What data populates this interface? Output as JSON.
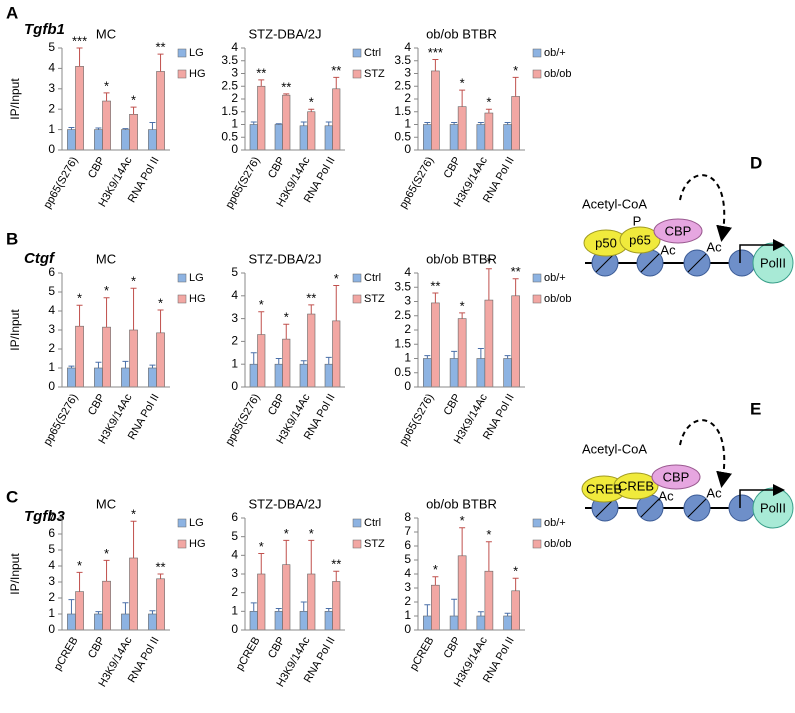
{
  "panels": [
    {
      "letter": "A",
      "gene": "Tgfb1"
    },
    {
      "letter": "B",
      "gene": "Ctgf"
    },
    {
      "letter": "C",
      "gene": "Tgfb3"
    }
  ],
  "chart_data": [
    {
      "type": "bar",
      "title": "MC",
      "ylabel": "IP/Input",
      "categories": [
        "pp65(S276)",
        "CBP",
        "H3K9/14Ac",
        "RNA Pol II"
      ],
      "series": [
        {
          "name": "LG",
          "color": "#8db3e2",
          "values": [
            1,
            1,
            1,
            1
          ],
          "errors": [
            0.1,
            0.08,
            0.05,
            0.35
          ]
        },
        {
          "name": "HG",
          "color": "#f2a7a3",
          "values": [
            4.1,
            2.4,
            1.75,
            3.85
          ],
          "errors": [
            0.9,
            0.4,
            0.35,
            0.85
          ]
        }
      ],
      "significance": [
        "***",
        "*",
        "*",
        "**"
      ],
      "ylim": [
        0,
        5
      ],
      "yticks": [
        0,
        1,
        2,
        3,
        4,
        5
      ]
    },
    {
      "type": "bar",
      "title": "STZ-DBA/2J",
      "categories": [
        "pp65(S276)",
        "CBP",
        "H3K9/14Ac",
        "RNA Pol II"
      ],
      "series": [
        {
          "name": "Ctrl",
          "color": "#8db3e2",
          "values": [
            1,
            1,
            0.95,
            0.95
          ],
          "errors": [
            0.1,
            0.03,
            0.15,
            0.15
          ]
        },
        {
          "name": "STZ",
          "color": "#f2a7a3",
          "values": [
            2.5,
            2.15,
            1.5,
            2.4
          ],
          "errors": [
            0.25,
            0.05,
            0.1,
            0.45
          ]
        }
      ],
      "significance": [
        "**",
        "**",
        "*",
        "**"
      ],
      "ylim": [
        0,
        4
      ],
      "yticks": [
        0,
        0.5,
        1,
        1.5,
        2,
        2.5,
        3,
        3.5,
        4
      ]
    },
    {
      "type": "bar",
      "title": "ob/ob BTBR",
      "categories": [
        "pp65(S276)",
        "CBP",
        "H3K9/14Ac",
        "RNA Pol II"
      ],
      "series": [
        {
          "name": "ob/+",
          "color": "#8db3e2",
          "values": [
            1,
            1,
            1,
            1
          ],
          "errors": [
            0.08,
            0.08,
            0.08,
            0.08
          ]
        },
        {
          "name": "ob/ob",
          "color": "#f2a7a3",
          "values": [
            3.1,
            1.7,
            1.45,
            2.1
          ],
          "errors": [
            0.45,
            0.65,
            0.15,
            0.75
          ]
        }
      ],
      "significance": [
        "***",
        "*",
        "*",
        "*"
      ],
      "ylim": [
        0,
        4
      ],
      "yticks": [
        0,
        0.5,
        1,
        1.5,
        2,
        2.5,
        3,
        3.5,
        4
      ]
    },
    {
      "type": "bar",
      "title": "MC",
      "ylabel": "IP/Input",
      "categories": [
        "pp65(S276)",
        "CBP",
        "H3K9/14Ac",
        "RNA Pol II"
      ],
      "series": [
        {
          "name": "LG",
          "color": "#8db3e2",
          "values": [
            1,
            1,
            1,
            1
          ],
          "errors": [
            0.1,
            0.3,
            0.35,
            0.15
          ]
        },
        {
          "name": "HG",
          "color": "#f2a7a3",
          "values": [
            3.2,
            3.15,
            3,
            2.85
          ],
          "errors": [
            1.1,
            1.55,
            2.2,
            1.2
          ]
        }
      ],
      "significance": [
        "*",
        "*",
        "*",
        "*"
      ],
      "ylim": [
        0,
        6
      ],
      "yticks": [
        0,
        1,
        2,
        3,
        4,
        5,
        6
      ]
    },
    {
      "type": "bar",
      "title": "STZ-DBA/2J",
      "categories": [
        "pp65(S276)",
        "CBP",
        "H3K9/14Ac",
        "RNA Pol II"
      ],
      "series": [
        {
          "name": "Ctrl",
          "color": "#8db3e2",
          "values": [
            1,
            1,
            1,
            1
          ],
          "errors": [
            0.5,
            0.25,
            0.15,
            0.3
          ]
        },
        {
          "name": "STZ",
          "color": "#f2a7a3",
          "values": [
            2.3,
            2.1,
            3.2,
            2.9
          ],
          "errors": [
            1.0,
            0.65,
            0.4,
            1.55
          ]
        }
      ],
      "significance": [
        "*",
        "*",
        "**",
        "*"
      ],
      "ylim": [
        0,
        5
      ],
      "yticks": [
        0,
        1,
        2,
        3,
        4,
        5
      ]
    },
    {
      "type": "bar",
      "title": "ob/ob BTBR",
      "categories": [
        "pp65(S276)",
        "CBP",
        "H3K9/14Ac",
        "RNA Pol II"
      ],
      "series": [
        {
          "name": "ob/+",
          "color": "#8db3e2",
          "values": [
            1,
            1,
            1,
            1
          ],
          "errors": [
            0.1,
            0.25,
            0.35,
            0.1
          ]
        },
        {
          "name": "ob/ob",
          "color": "#f2a7a3",
          "values": [
            2.95,
            2.4,
            3.05,
            3.2
          ],
          "errors": [
            0.35,
            0.2,
            1.1,
            0.6
          ]
        }
      ],
      "significance": [
        "**",
        "*",
        "*",
        "**"
      ],
      "ylim": [
        0,
        4
      ],
      "yticks": [
        0,
        0.5,
        1,
        1.5,
        2,
        2.5,
        3,
        3.5,
        4
      ]
    },
    {
      "type": "bar",
      "title": "MC",
      "ylabel": "IP/Input",
      "categories": [
        "pCREB",
        "CBP",
        "H3K9/14Ac",
        "RNA Pol II"
      ],
      "series": [
        {
          "name": "LG",
          "color": "#8db3e2",
          "values": [
            1,
            1,
            1,
            1
          ],
          "errors": [
            0.9,
            0.15,
            0.7,
            0.2
          ]
        },
        {
          "name": "HG",
          "color": "#f2a7a3",
          "values": [
            2.4,
            3.05,
            4.5,
            3.2
          ],
          "errors": [
            1.2,
            1.3,
            2.3,
            0.3
          ]
        }
      ],
      "significance": [
        "*",
        "*",
        "*",
        "**"
      ],
      "ylim": [
        0,
        7
      ],
      "yticks": [
        0,
        1,
        2,
        3,
        4,
        5,
        6,
        7
      ]
    },
    {
      "type": "bar",
      "title": "STZ-DBA/2J",
      "categories": [
        "pCREB",
        "CBP",
        "H3K9/14Ac",
        "RNA Pol II"
      ],
      "series": [
        {
          "name": "Ctrl",
          "color": "#8db3e2",
          "values": [
            1,
            1,
            1,
            1
          ],
          "errors": [
            0.45,
            0.15,
            0.5,
            0.15
          ]
        },
        {
          "name": "STZ",
          "color": "#f2a7a3",
          "values": [
            3,
            3.5,
            3,
            2.6
          ],
          "errors": [
            1.1,
            1.3,
            1.8,
            0.55
          ]
        }
      ],
      "significance": [
        "*",
        "*",
        "*",
        "**"
      ],
      "ylim": [
        0,
        6
      ],
      "yticks": [
        0,
        1,
        2,
        3,
        4,
        5,
        6
      ]
    },
    {
      "type": "bar",
      "title": "ob/ob BTBR",
      "categories": [
        "pCREB",
        "CBP",
        "H3K9/14Ac",
        "RNA Pol II"
      ],
      "series": [
        {
          "name": "ob/+",
          "color": "#8db3e2",
          "values": [
            1,
            1,
            1,
            1
          ],
          "errors": [
            0.8,
            1.2,
            0.3,
            0.2
          ]
        },
        {
          "name": "ob/ob",
          "color": "#f2a7a3",
          "values": [
            3.2,
            5.3,
            4.2,
            2.8
          ],
          "errors": [
            0.6,
            2.0,
            2.1,
            0.9
          ]
        }
      ],
      "significance": [
        "*",
        "*",
        "*",
        "*"
      ],
      "ylim": [
        0,
        8
      ],
      "yticks": [
        0,
        1,
        2,
        3,
        4,
        5,
        6,
        7,
        8
      ]
    }
  ],
  "diagrams": [
    {
      "letter": "D",
      "cofactor": "Acetyl-CoA",
      "phospho": "P",
      "factors": [
        "p50",
        "p65"
      ],
      "coactivator": "CBP",
      "marks": [
        "Ac",
        "Ac"
      ],
      "polymerase": "PolII"
    },
    {
      "letter": "E",
      "cofactor": "Acetyl-CoA",
      "factors": [
        "CREB",
        "CREB"
      ],
      "coactivator": "CBP",
      "marks": [
        "Ac",
        "Ac"
      ],
      "polymerase": "PolII"
    }
  ]
}
